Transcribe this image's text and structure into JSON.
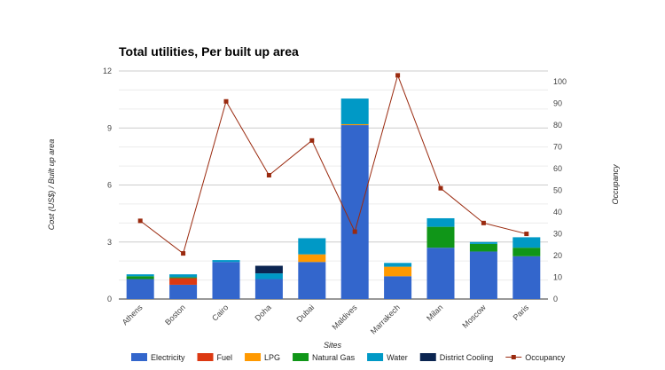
{
  "chart_data": {
    "type": "bar",
    "stacked": true,
    "title": "Total utilities, Per built up area",
    "xlabel": "Sites",
    "ylabel": "Cost (US$) / Built up area",
    "y2label": "Occupancy",
    "categories": [
      "Athens",
      "Boston",
      "Cairo",
      "Doha",
      "Dubai",
      "Maldives",
      "Marrakech",
      "Milan",
      "Moscow",
      "Paris"
    ],
    "ylim": [
      0,
      12
    ],
    "yticks": [
      0,
      3,
      6,
      9,
      12
    ],
    "y2lim": [
      0,
      105
    ],
    "y2ticks": [
      0,
      10,
      20,
      30,
      40,
      50,
      60,
      70,
      80,
      90,
      100
    ],
    "grid": true,
    "legend_position": "bottom",
    "series": [
      {
        "name": "Electricity",
        "color": "#3366cc",
        "values": [
          1.05,
          0.75,
          1.95,
          1.05,
          1.95,
          9.15,
          1.2,
          2.7,
          2.5,
          2.25
        ]
      },
      {
        "name": "Fuel",
        "color": "#dc3912",
        "values": [
          0,
          0.35,
          0,
          0,
          0,
          0,
          0,
          0,
          0,
          0
        ]
      },
      {
        "name": "LPG",
        "color": "#ff9900",
        "values": [
          0,
          0,
          0,
          0,
          0.4,
          0.05,
          0.5,
          0,
          0,
          0
        ]
      },
      {
        "name": "Natural Gas",
        "color": "#109618",
        "values": [
          0.15,
          0.05,
          0,
          0,
          0,
          0,
          0,
          1.1,
          0.4,
          0.45
        ]
      },
      {
        "name": "Water",
        "color": "#0099c6",
        "values": [
          0.1,
          0.15,
          0.1,
          0.3,
          0.85,
          1.35,
          0.2,
          0.45,
          0.1,
          0.55
        ]
      },
      {
        "name": "District Cooling",
        "color": "#0b2551",
        "values": [
          0,
          0,
          0,
          0.4,
          0,
          0,
          0,
          0,
          0,
          0
        ]
      }
    ],
    "line_series": {
      "name": "Occupancy",
      "color": "#9a2a0f",
      "axis": "right",
      "values": [
        36,
        21,
        91,
        57,
        73,
        31,
        103,
        51,
        35,
        30
      ]
    }
  }
}
